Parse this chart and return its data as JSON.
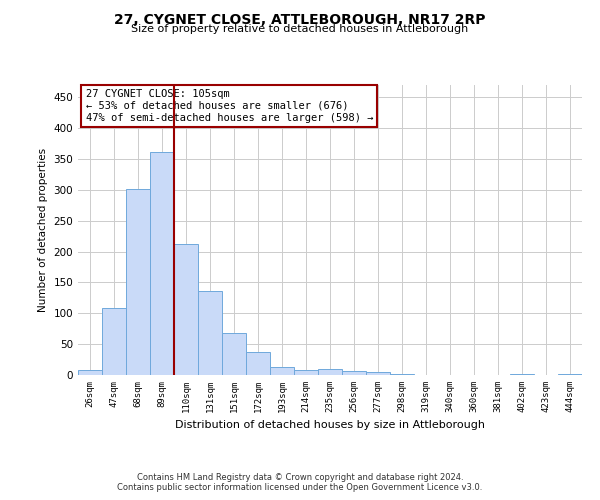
{
  "title": "27, CYGNET CLOSE, ATTLEBOROUGH, NR17 2RP",
  "subtitle": "Size of property relative to detached houses in Attleborough",
  "xlabel": "Distribution of detached houses by size in Attleborough",
  "ylabel": "Number of detached properties",
  "footer_line1": "Contains HM Land Registry data © Crown copyright and database right 2024.",
  "footer_line2": "Contains public sector information licensed under the Open Government Licence v3.0.",
  "annotation_line1": "27 CYGNET CLOSE: 105sqm",
  "annotation_line2": "← 53% of detached houses are smaller (676)",
  "annotation_line3": "47% of semi-detached houses are larger (598) →",
  "bar_color": "#c9daf8",
  "bar_edge_color": "#6fa8dc",
  "vline_color": "#990000",
  "annotation_box_color": "#ffffff",
  "annotation_box_edge": "#990000",
  "grid_color": "#cccccc",
  "background_color": "#ffffff",
  "categories": [
    "26sqm",
    "47sqm",
    "68sqm",
    "89sqm",
    "110sqm",
    "131sqm",
    "151sqm",
    "172sqm",
    "193sqm",
    "214sqm",
    "235sqm",
    "256sqm",
    "277sqm",
    "298sqm",
    "319sqm",
    "340sqm",
    "360sqm",
    "381sqm",
    "402sqm",
    "423sqm",
    "444sqm"
  ],
  "values": [
    8,
    108,
    302,
    362,
    213,
    136,
    68,
    37,
    13,
    8,
    10,
    6,
    5,
    2,
    0,
    0,
    0,
    0,
    2,
    0,
    2
  ],
  "vline_position": 3.5,
  "ylim": [
    0,
    470
  ],
  "yticks": [
    0,
    50,
    100,
    150,
    200,
    250,
    300,
    350,
    400,
    450
  ],
  "fig_width": 6.0,
  "fig_height": 5.0,
  "dpi": 100
}
